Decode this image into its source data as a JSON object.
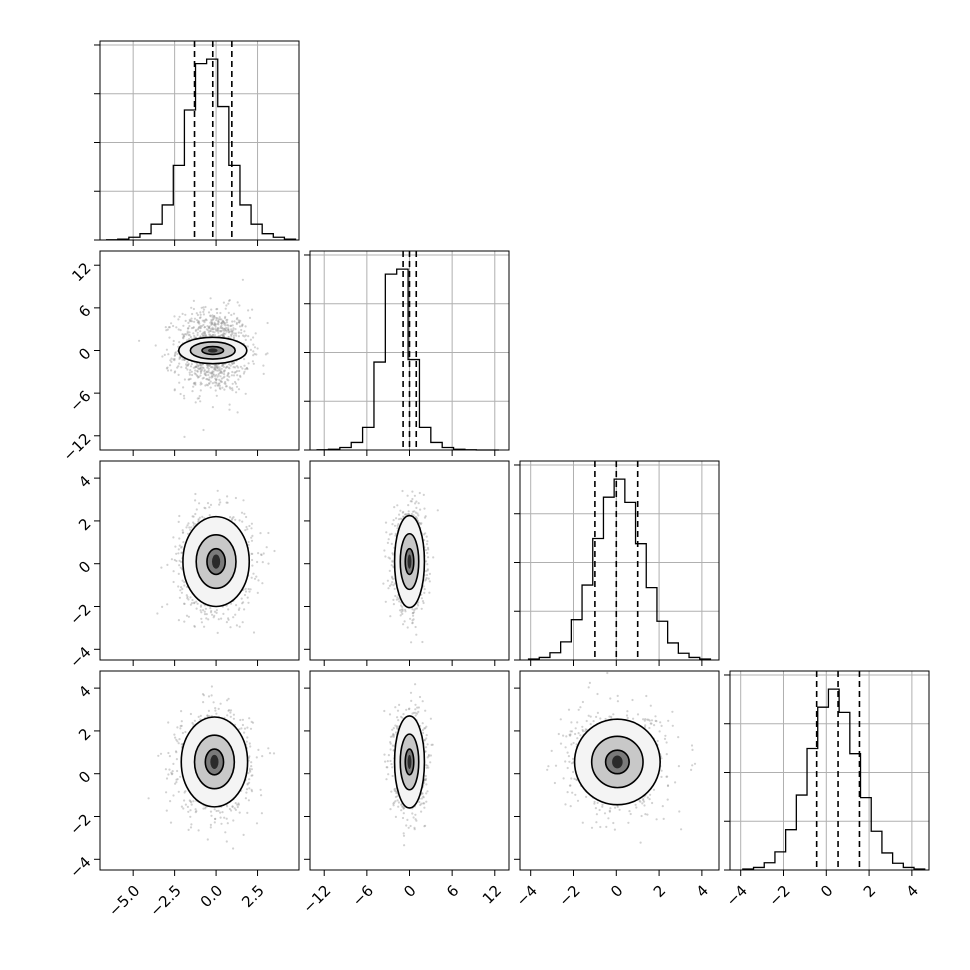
{
  "chart_data": {
    "type": "corner",
    "title": "",
    "parameters": [
      {
        "name": "",
        "range": [
          -7,
          5
        ],
        "ticks": [
          "−5.0",
          "−2.5",
          "0.0",
          "2.5"
        ],
        "tick_values": [
          -5,
          -2.5,
          0,
          2.5
        ]
      },
      {
        "name": "",
        "range": [
          -14,
          14
        ],
        "ticks": [
          "−12",
          "−6",
          "0",
          "6",
          "12"
        ],
        "tick_values": [
          -12,
          -6,
          0,
          6,
          12
        ]
      },
      {
        "name": "",
        "range": [
          -4.5,
          4.8
        ],
        "ticks": [
          "−4",
          "−2",
          "0",
          "2",
          "4"
        ],
        "tick_values": [
          -4,
          -2,
          0,
          2,
          4
        ]
      },
      {
        "name": "",
        "range": [
          -4.5,
          4.8
        ],
        "ticks": [
          "−4",
          "−2",
          "0",
          "2",
          "4"
        ],
        "tick_values": [
          -4,
          -2,
          0,
          2,
          4
        ]
      }
    ],
    "marginals": [
      {
        "param": 0,
        "bin_edges": [
          -6.6,
          -5.93,
          -5.26,
          -4.59,
          -3.92,
          -3.25,
          -2.58,
          -1.91,
          -1.24,
          -0.57,
          0.1,
          0.77,
          1.44,
          2.11,
          2.78,
          3.45,
          4.12,
          4.79
        ],
        "counts": [
          1,
          4,
          12,
          28,
          70,
          155,
          330,
          575,
          780,
          800,
          590,
          330,
          155,
          70,
          28,
          12,
          4
        ],
        "quantiles": [
          -1.3,
          -0.2,
          0.95
        ]
      },
      {
        "param": 1,
        "bin_edges": [
          -13,
          -11.4,
          -9.8,
          -8.2,
          -6.6,
          -5,
          -3.4,
          -1.8,
          -0.2,
          1.4,
          3,
          4.6,
          6.2,
          7.8,
          9.4,
          11,
          12.6
        ],
        "counts": [
          1,
          3,
          10,
          30,
          90,
          350,
          700,
          720,
          360,
          90,
          30,
          10,
          3,
          1,
          0,
          0
        ],
        "quantiles": [
          -0.9,
          0.0,
          0.95
        ]
      },
      {
        "param": 2,
        "bin_edges": [
          -4.1,
          -3.6,
          -3.1,
          -2.6,
          -2.1,
          -1.6,
          -1.1,
          -0.6,
          -0.1,
          0.4,
          0.9,
          1.4,
          1.9,
          2.4,
          2.9,
          3.4,
          3.9,
          4.4
        ],
        "counts": [
          2,
          5,
          14,
          35,
          78,
          145,
          235,
          315,
          350,
          305,
          225,
          140,
          75,
          33,
          13,
          5,
          2
        ],
        "quantiles": [
          -1.0,
          0.0,
          1.0
        ]
      },
      {
        "param": 3,
        "bin_edges": [
          -3.9,
          -3.4,
          -2.9,
          -2.4,
          -1.9,
          -1.4,
          -0.9,
          -0.4,
          0.1,
          0.6,
          1.1,
          1.6,
          2.1,
          2.6,
          3.1,
          3.6,
          4.1,
          4.6
        ],
        "counts": [
          2,
          5,
          14,
          35,
          78,
          145,
          235,
          315,
          350,
          305,
          225,
          140,
          75,
          33,
          13,
          5,
          2
        ],
        "quantiles": [
          -0.45,
          0.55,
          1.55
        ]
      }
    ],
    "pairs": [
      {
        "x_param": 0,
        "y_param": 1,
        "center": [
          -0.2,
          0.0
        ],
        "levels_sigma": [
          [
            0.65,
            0.55
          ],
          [
            1.35,
            1.2
          ],
          [
            2.05,
            1.85
          ]
        ],
        "scatter_sigma": [
          1.1,
          2.9
        ]
      },
      {
        "x_param": 0,
        "y_param": 2,
        "center": [
          0.0,
          0.1
        ],
        "levels_sigma": [
          [
            0.55,
            0.6
          ],
          [
            1.2,
            1.25
          ],
          [
            2.0,
            2.1
          ]
        ],
        "scatter_sigma": [
          1.1,
          1.15
        ]
      },
      {
        "x_param": 1,
        "y_param": 2,
        "center": [
          0.0,
          0.1
        ],
        "levels_sigma": [
          [
            0.6,
            0.6
          ],
          [
            1.3,
            1.3
          ],
          [
            2.1,
            2.15
          ]
        ],
        "scatter_sigma": [
          1.1,
          1.1
        ]
      },
      {
        "x_param": 0,
        "y_param": 3,
        "center": [
          -0.1,
          0.55
        ],
        "levels_sigma": [
          [
            0.55,
            0.6
          ],
          [
            1.2,
            1.25
          ],
          [
            2.0,
            2.1
          ]
        ],
        "scatter_sigma": [
          1.1,
          1.15
        ]
      },
      {
        "x_param": 1,
        "y_param": 3,
        "center": [
          0.0,
          0.55
        ],
        "levels_sigma": [
          [
            0.6,
            0.6
          ],
          [
            1.3,
            1.3
          ],
          [
            2.1,
            2.15
          ]
        ],
        "scatter_sigma": [
          1.1,
          1.1
        ]
      },
      {
        "x_param": 2,
        "y_param": 3,
        "center": [
          0.05,
          0.55
        ],
        "levels_sigma": [
          [
            0.55,
            0.55
          ],
          [
            1.2,
            1.2
          ],
          [
            2.0,
            2.0
          ]
        ],
        "scatter_sigma": [
          1.1,
          1.1
        ]
      }
    ],
    "grid": true,
    "legend": "none"
  }
}
